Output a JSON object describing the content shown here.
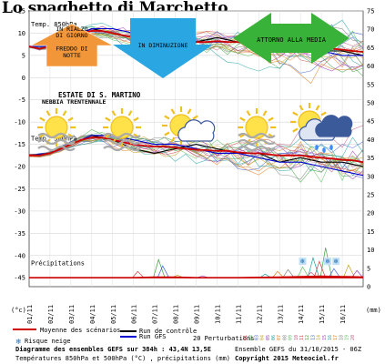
{
  "page_title": "Lo spaghetto di Marchetto",
  "colors": {
    "arrow_orange": "#f2963a",
    "arrow_blue": "#2aa7e2",
    "arrow_green": "#39b23a",
    "control_run": "#000000",
    "gfs_run": "#0000cc",
    "mean": "#cc0000",
    "precip_perturbation": "#66aa66",
    "cloud_grey": "#aaaaaa",
    "rain_cloud": "#3a5a9a"
  },
  "icons": [
    "sun-fog-icon",
    "sun-fog-icon",
    "sun-cloud-icon",
    "sun-fog-icon",
    "rain-cloud-icon"
  ],
  "labels": {
    "arrow1": [
      "IN RIALZO",
      "DI GIORNO",
      "",
      "FREDDO DI",
      "NOTTE"
    ],
    "arrow2": "IN DIMINUZIONE",
    "arrow3": "ATTORNO ALLA MEDIA",
    "estate": "ESTATE DI S. MARTINO",
    "nebbia": "NEBBIA TRENTENNALE",
    "temp850": "Temp. 850hPa",
    "temp500": "Temp. 500hPa",
    "precip": "Précipitations",
    "unit_c": "(°c)",
    "unit_mm": "(mm)",
    "mean_legend": "Moyenne des scénarios",
    "control_legend": "Run de contrôle",
    "gfs_legend": "Run GFS",
    "pert_legend": "20 Perturbations",
    "snow_legend": "Risque neige",
    "ens_list": "01 02 03 04 05 06 07 08 09 10 11 12 13 14 15 16 17 18 19 20"
  },
  "footer": {
    "line1": "Diagramme des ensembles GEFS sur 384h : 43,4N 13,5E",
    "line2": "Températures 850hPa et 500hPa (°C) , précipitations (mm)",
    "right1": "Ensemble GEFS du 31/10/2015 - 06Z",
    "right2": "Copyright 2015 Meteociel.fr"
  },
  "chart_data": {
    "type": "line",
    "title": "Diagramme des ensembles GEFS sur 384h : 43,4N 13,5E",
    "x_dates": [
      "01/11",
      "02/11",
      "03/11",
      "04/11",
      "05/11",
      "06/11",
      "07/11",
      "08/11",
      "09/11",
      "10/11",
      "11/11",
      "12/11",
      "13/11",
      "14/11",
      "15/11",
      "16/11"
    ],
    "y_left_ticks": [
      15,
      10,
      5,
      0,
      -5,
      -10,
      -15,
      -20,
      -25,
      -30,
      -35,
      -40,
      -45
    ],
    "y_right_ticks": [
      75,
      70,
      65,
      60,
      55,
      50,
      45,
      40,
      35,
      30,
      25,
      20,
      15,
      10,
      5,
      0
    ],
    "ylabel_left": "(°c)",
    "ylabel_right": "(mm)",
    "xlim": [
      0,
      16
    ],
    "ylim": [
      -47,
      15
    ],
    "legend": "bottom",
    "series": [
      {
        "name": "Temp. 850hPa - Moyenne des scénarios",
        "x": [
          0,
          0.5,
          1,
          1.5,
          2,
          2.5,
          3,
          3.5,
          4,
          4.5,
          5,
          5.5,
          6,
          6.5,
          7,
          7.5,
          8,
          8.5,
          9,
          9.5,
          10,
          10.5,
          11,
          11.5,
          12,
          12.5,
          13,
          13.5,
          14,
          14.5,
          15,
          15.5,
          16
        ],
        "values": [
          7,
          6.5,
          7,
          8,
          9,
          10,
          10.5,
          10.5,
          10,
          9.5,
          9,
          8.7,
          8.5,
          8.2,
          8,
          7.8,
          8,
          8,
          8.2,
          8,
          8,
          7.7,
          7.5,
          7.2,
          7,
          6.8,
          7,
          6.8,
          6.5,
          6.5,
          6.3,
          6,
          5.8
        ]
      },
      {
        "name": "Temp. 850hPa - Run de contrôle",
        "x": [
          0,
          1,
          2,
          3,
          4,
          5,
          6,
          7,
          8,
          9,
          10,
          11,
          12,
          13,
          14,
          15,
          16
        ],
        "values": [
          7,
          7,
          9,
          11,
          10,
          9,
          8,
          7,
          8,
          9,
          8,
          8,
          6,
          7,
          6,
          6,
          5
        ]
      },
      {
        "name": "Temp. 850hPa - Run GFS",
        "x": [
          0,
          1,
          2,
          3,
          4,
          5,
          6,
          7,
          8,
          9,
          10,
          11,
          12,
          13,
          14,
          15,
          16
        ],
        "values": [
          7,
          7,
          9,
          11,
          11,
          10,
          9,
          8,
          8,
          8,
          8,
          7,
          7,
          6,
          6,
          5,
          5
        ]
      },
      {
        "name": "Temp. 500hPa - Moyenne des scénarios",
        "x": [
          0,
          0.5,
          1,
          1.5,
          2,
          2.5,
          3,
          3.5,
          4,
          4.5,
          5,
          5.5,
          6,
          6.5,
          7,
          7.5,
          8,
          8.5,
          9,
          9.5,
          10,
          10.5,
          11,
          11.5,
          12,
          12.5,
          13,
          13.5,
          14,
          14.5,
          15,
          15.5,
          16
        ],
        "values": [
          -17.5,
          -17.5,
          -17,
          -16,
          -15,
          -14,
          -13.5,
          -13.5,
          -14,
          -14.5,
          -15,
          -15.3,
          -15.5,
          -15.5,
          -15.7,
          -16,
          -16.2,
          -16.3,
          -16.5,
          -16.5,
          -16.8,
          -17,
          -17,
          -17.3,
          -17.5,
          -17.5,
          -17.5,
          -17.8,
          -18,
          -18.2,
          -18.5,
          -18.6,
          -19
        ]
      },
      {
        "name": "Temp. 500hPa - Run de contrôle",
        "x": [
          0,
          1,
          2,
          3,
          4,
          5,
          6,
          7,
          8,
          9,
          10,
          11,
          12,
          13,
          14,
          15,
          16
        ],
        "values": [
          -17.5,
          -17,
          -15,
          -13,
          -14,
          -16,
          -17,
          -16,
          -15,
          -16,
          -17,
          -17,
          -19,
          -18,
          -19,
          -19,
          -20
        ]
      },
      {
        "name": "Temp. 500hPa - Run GFS",
        "x": [
          0,
          1,
          2,
          3,
          4,
          5,
          6,
          7,
          8,
          9,
          10,
          11,
          12,
          13,
          14,
          15,
          16
        ],
        "values": [
          -17.5,
          -17,
          -15,
          -13,
          -13,
          -14,
          -15,
          -15,
          -16,
          -17,
          -17,
          -18,
          -19,
          -19,
          -20,
          -21,
          -22
        ]
      },
      {
        "name": "Précipitations - Moyenne des scénarios",
        "x": [
          0,
          1,
          2,
          3,
          4,
          5,
          6,
          7,
          8,
          9,
          10,
          11,
          12,
          13,
          14,
          15,
          16
        ],
        "values": [
          0,
          0,
          0,
          0,
          0,
          0,
          0.3,
          0.3,
          0,
          0,
          0,
          0.2,
          0.3,
          0.6,
          0.8,
          0.6,
          0.4
        ]
      }
    ]
  }
}
